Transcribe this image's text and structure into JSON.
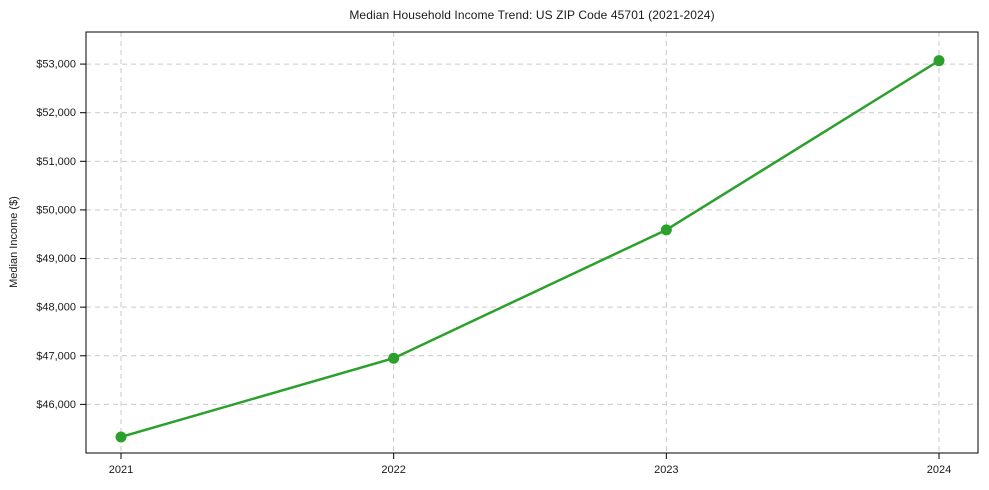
{
  "page": {
    "background_color": "#ffffff",
    "text_color": "#1a1a1a"
  },
  "chart_data": {
    "type": "line",
    "title": "Median Household Income Trend: US ZIP Code 45701 (2021-2024)",
    "xlabel": "",
    "ylabel": "Median Income ($)",
    "categories": [
      "2021",
      "2022",
      "2023",
      "2024"
    ],
    "series": [
      {
        "name": "Median Household Income",
        "values": [
          45330,
          46950,
          49590,
          53070
        ],
        "color": "#2ca02c",
        "marker": "circle",
        "line_width": 2.5,
        "marker_radius": 5.5
      }
    ],
    "ylim": [
      45000,
      53660
    ],
    "yticks": [
      46000,
      47000,
      48000,
      49000,
      50000,
      51000,
      52000,
      53000
    ],
    "ytick_labels": [
      "$46,000",
      "$47,000",
      "$48,000",
      "$49,000",
      "$50,000",
      "$51,000",
      "$52,000",
      "$53,000"
    ],
    "grid": true,
    "grid_style": "dashed",
    "grid_color": "#c9c9c9",
    "axes_color": "#000000",
    "legend": "none"
  }
}
